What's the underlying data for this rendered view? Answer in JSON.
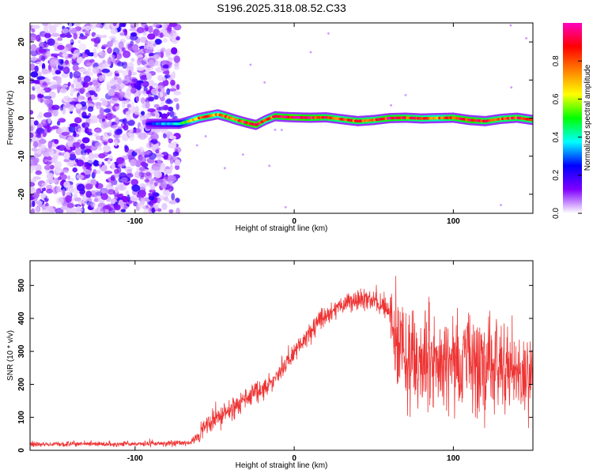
{
  "title": "S196.2025.318.08.52.C33",
  "chart_data": [
    {
      "type": "heatmap",
      "xlabel": "Height of straight line (km)",
      "ylabel": "Frequency (Hz)",
      "xlim": [
        -166,
        150
      ],
      "ylim": [
        -25,
        25
      ],
      "xticks": [
        -100,
        0,
        100
      ],
      "xtick_labels": [
        "-100",
        "0",
        "100"
      ],
      "yticks": [
        -20,
        -10,
        0,
        10,
        20
      ],
      "ytick_labels": [
        "-20",
        "-10",
        "0",
        "10",
        "20"
      ],
      "colorbar": {
        "label": "Normalized spectral amplitude",
        "range": [
          0,
          1
        ],
        "ticks": [
          0.0,
          0.2,
          0.4,
          0.6,
          0.8
        ],
        "tick_labels": [
          "0.0",
          "0.2",
          "0.4",
          "0.6",
          "0.8"
        ],
        "colors": [
          "#ff00c0",
          "#ff0000",
          "#ff8000",
          "#ffff00",
          "#00ff00",
          "#00ffff",
          "#0000ff",
          "#8000ff",
          "#ffffff"
        ]
      },
      "noise_region_x": [
        -166,
        -73
      ],
      "ridge": {
        "x": [
          -92,
          -85,
          -78,
          -72,
          -66,
          -60,
          -54,
          -48,
          -42,
          -36,
          -30,
          -24,
          -18,
          -12,
          -6,
          0,
          10,
          20,
          30,
          40,
          50,
          60,
          70,
          80,
          90,
          100,
          110,
          120,
          130,
          140,
          150
        ],
        "y": [
          -1.5,
          -1.5,
          -1.5,
          -1.5,
          -0.8,
          0,
          0.5,
          1,
          0.3,
          -0.5,
          -1.2,
          -1.8,
          -0.5,
          0.5,
          0.3,
          0.2,
          0.1,
          0.2,
          -0.3,
          -0.8,
          -0.5,
          0,
          0.1,
          -0.1,
          0,
          0.1,
          -0.5,
          -0.8,
          -0.2,
          0.1,
          -0.5
        ],
        "amplitude": [
          0.2,
          0.3,
          0.35,
          0.45,
          0.6,
          0.75,
          0.8,
          0.7,
          0.85,
          0.8,
          0.9,
          0.95,
          0.75,
          0.85,
          0.9,
          0.95,
          0.9,
          0.85,
          0.8,
          0.85,
          0.8,
          0.9,
          0.85,
          0.8,
          0.75,
          0.85,
          0.9,
          0.85,
          0.8,
          0.85,
          0.8
        ]
      }
    },
    {
      "type": "line",
      "xlabel": "Height of straight line (km)",
      "ylabel": "SNR (10 * v/v)",
      "xlim": [
        -166,
        150
      ],
      "ylim": [
        0,
        575
      ],
      "xticks": [
        -100,
        0,
        100
      ],
      "xtick_labels": [
        "-100",
        "0",
        "100"
      ],
      "yticks": [
        0,
        100,
        200,
        300,
        400,
        500
      ],
      "ytick_labels": [
        "0",
        "100",
        "200",
        "300",
        "400",
        "500"
      ],
      "color": "#ee3333",
      "series": [
        {
          "name": "SNR",
          "x": [
            -166,
            -100,
            -66,
            -60,
            -55,
            -45,
            -35,
            -25,
            -15,
            -5,
            5,
            15,
            25,
            35,
            45,
            55,
            60,
            62,
            70,
            80,
            90,
            100,
            110,
            120,
            130,
            140,
            150
          ],
          "mean": [
            18,
            20,
            22,
            40,
            80,
            110,
            140,
            170,
            200,
            260,
            330,
            390,
            430,
            450,
            460,
            440,
            420,
            300,
            280,
            280,
            270,
            270,
            270,
            260,
            250,
            240,
            230
          ],
          "spread": [
            6,
            7,
            8,
            15,
            30,
            30,
            30,
            30,
            30,
            30,
            30,
            28,
            25,
            25,
            25,
            30,
            40,
            130,
            150,
            150,
            145,
            140,
            140,
            140,
            120,
            110,
            100
          ]
        }
      ]
    }
  ]
}
